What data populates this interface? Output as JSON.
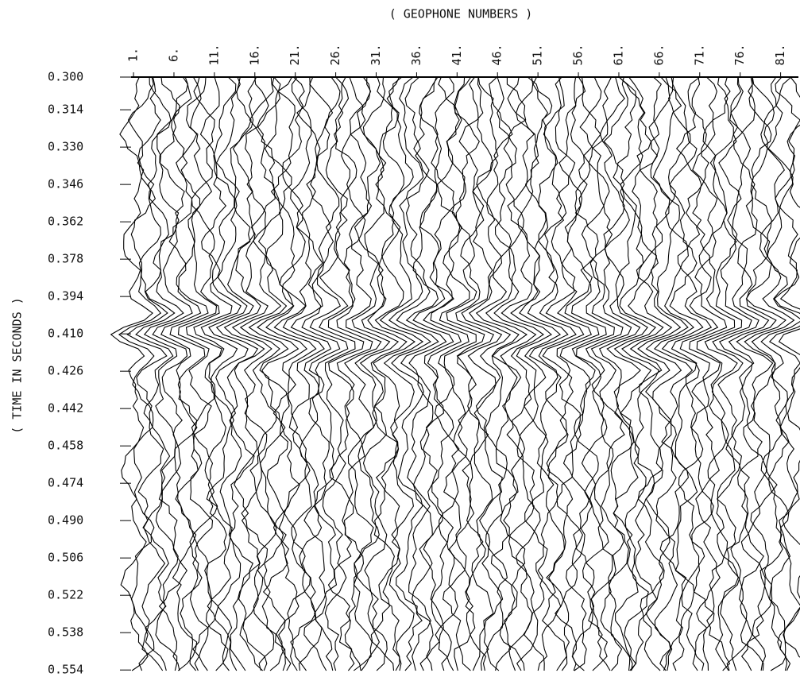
{
  "chart_data": {
    "type": "wiggle",
    "title": "( GEOPHONE NUMBERS )",
    "y_label": "( TIME IN SECONDS )",
    "color": "#000000",
    "xlim": [
      0.7,
      83.2
    ],
    "xticks": [
      {
        "value": 1,
        "label": "1."
      },
      {
        "value": 6,
        "label": "6."
      },
      {
        "value": 11,
        "label": "11."
      },
      {
        "value": 16,
        "label": "16."
      },
      {
        "value": 21,
        "label": "21."
      },
      {
        "value": 26,
        "label": "26."
      },
      {
        "value": 31,
        "label": "31."
      },
      {
        "value": 36,
        "label": "36."
      },
      {
        "value": 41,
        "label": "41."
      },
      {
        "value": 46,
        "label": "46."
      },
      {
        "value": 51,
        "label": "51."
      },
      {
        "value": 56,
        "label": "56."
      },
      {
        "value": 61,
        "label": "61."
      },
      {
        "value": 66,
        "label": "66."
      },
      {
        "value": 71,
        "label": "71."
      },
      {
        "value": 76,
        "label": "76."
      },
      {
        "value": 81,
        "label": "81."
      }
    ],
    "ylim": [
      0.3,
      0.557
    ],
    "yticks": [
      {
        "value": 0.3,
        "label": "0.300"
      },
      {
        "value": 0.314,
        "label": "0.314"
      },
      {
        "value": 0.33,
        "label": "0.330"
      },
      {
        "value": 0.346,
        "label": "0.346"
      },
      {
        "value": 0.362,
        "label": "0.362"
      },
      {
        "value": 0.378,
        "label": "0.378"
      },
      {
        "value": 0.394,
        "label": "0.394"
      },
      {
        "value": 0.41,
        "label": "0.410"
      },
      {
        "value": 0.426,
        "label": "0.426"
      },
      {
        "value": 0.442,
        "label": "0.442"
      },
      {
        "value": 0.458,
        "label": "0.458"
      },
      {
        "value": 0.474,
        "label": "0.474"
      },
      {
        "value": 0.49,
        "label": "0.490"
      },
      {
        "value": 0.506,
        "label": "0.506"
      },
      {
        "value": 0.522,
        "label": "0.522"
      },
      {
        "value": 0.538,
        "label": "0.538"
      },
      {
        "value": 0.554,
        "label": "0.554"
      }
    ]
  }
}
